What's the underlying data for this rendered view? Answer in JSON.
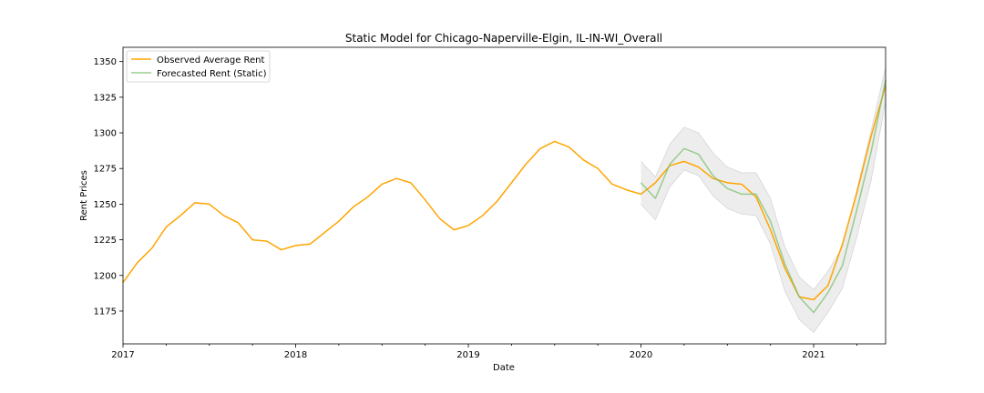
{
  "chart_data": {
    "type": "line",
    "title": "Static Model for Chicago-Naperville-Elgin, IL-IN-WI_Overall",
    "xlabel": "Date",
    "ylabel": "Rent Prices",
    "xlim": [
      "2017-01",
      "2021-06"
    ],
    "ylim": [
      1152,
      1360
    ],
    "x_ticks": [
      "2017",
      "2018",
      "2019",
      "2020",
      "2021"
    ],
    "y_ticks": [
      1175,
      1200,
      1225,
      1250,
      1275,
      1300,
      1325,
      1350
    ],
    "grid": false,
    "legend_position": "top-left",
    "series": [
      {
        "name": "Observed Average Rent",
        "color": "#FFA500",
        "x": [
          "2017-01",
          "2017-02",
          "2017-03",
          "2017-04",
          "2017-05",
          "2017-06",
          "2017-07",
          "2017-08",
          "2017-09",
          "2017-10",
          "2017-11",
          "2017-12",
          "2018-01",
          "2018-02",
          "2018-03",
          "2018-04",
          "2018-05",
          "2018-06",
          "2018-07",
          "2018-08",
          "2018-09",
          "2018-10",
          "2018-11",
          "2018-12",
          "2019-01",
          "2019-02",
          "2019-03",
          "2019-04",
          "2019-05",
          "2019-06",
          "2019-07",
          "2019-08",
          "2019-09",
          "2019-10",
          "2019-11",
          "2019-12",
          "2020-01",
          "2020-02",
          "2020-03",
          "2020-04",
          "2020-05",
          "2020-06",
          "2020-07",
          "2020-08",
          "2020-09",
          "2020-10",
          "2020-11",
          "2020-12",
          "2021-01",
          "2021-02",
          "2021-03",
          "2021-04",
          "2021-05",
          "2021-06"
        ],
        "values": [
          1195,
          1209,
          1219,
          1234,
          1242,
          1251,
          1250,
          1242,
          1237,
          1225,
          1224,
          1218,
          1221,
          1222,
          1230,
          1238,
          1248,
          1255,
          1264,
          1268,
          1265,
          1253,
          1240,
          1232,
          1235,
          1242,
          1252,
          1265,
          1278,
          1289,
          1294,
          1290,
          1281,
          1275,
          1264,
          1260,
          1257,
          1265,
          1277,
          1280,
          1276,
          1268,
          1265,
          1264,
          1255,
          1232,
          1205,
          1185,
          1183,
          1193,
          1222,
          1258,
          1298,
          1333
        ]
      },
      {
        "name": "Forecasted Rent (Static)",
        "color": "#7CBF6E",
        "x": [
          "2020-01",
          "2020-02",
          "2020-03",
          "2020-04",
          "2020-05",
          "2020-06",
          "2020-07",
          "2020-08",
          "2020-09",
          "2020-10",
          "2020-11",
          "2020-12",
          "2021-01",
          "2021-02",
          "2021-03",
          "2021-04",
          "2021-05",
          "2021-06"
        ],
        "values": [
          1265,
          1254,
          1278,
          1289,
          1285,
          1270,
          1261,
          1257,
          1257,
          1238,
          1208,
          1185,
          1174,
          1188,
          1207,
          1246,
          1287,
          1337
        ],
        "ci_lower": [
          1250,
          1239,
          1262,
          1274,
          1270,
          1256,
          1247,
          1243,
          1242,
          1222,
          1189,
          1169,
          1160,
          1174,
          1191,
          1227,
          1267,
          1322
        ],
        "ci_upper": [
          1280,
          1269,
          1292,
          1304,
          1300,
          1286,
          1276,
          1272,
          1272,
          1254,
          1220,
          1199,
          1190,
          1203,
          1220,
          1260,
          1302,
          1346
        ]
      }
    ]
  }
}
